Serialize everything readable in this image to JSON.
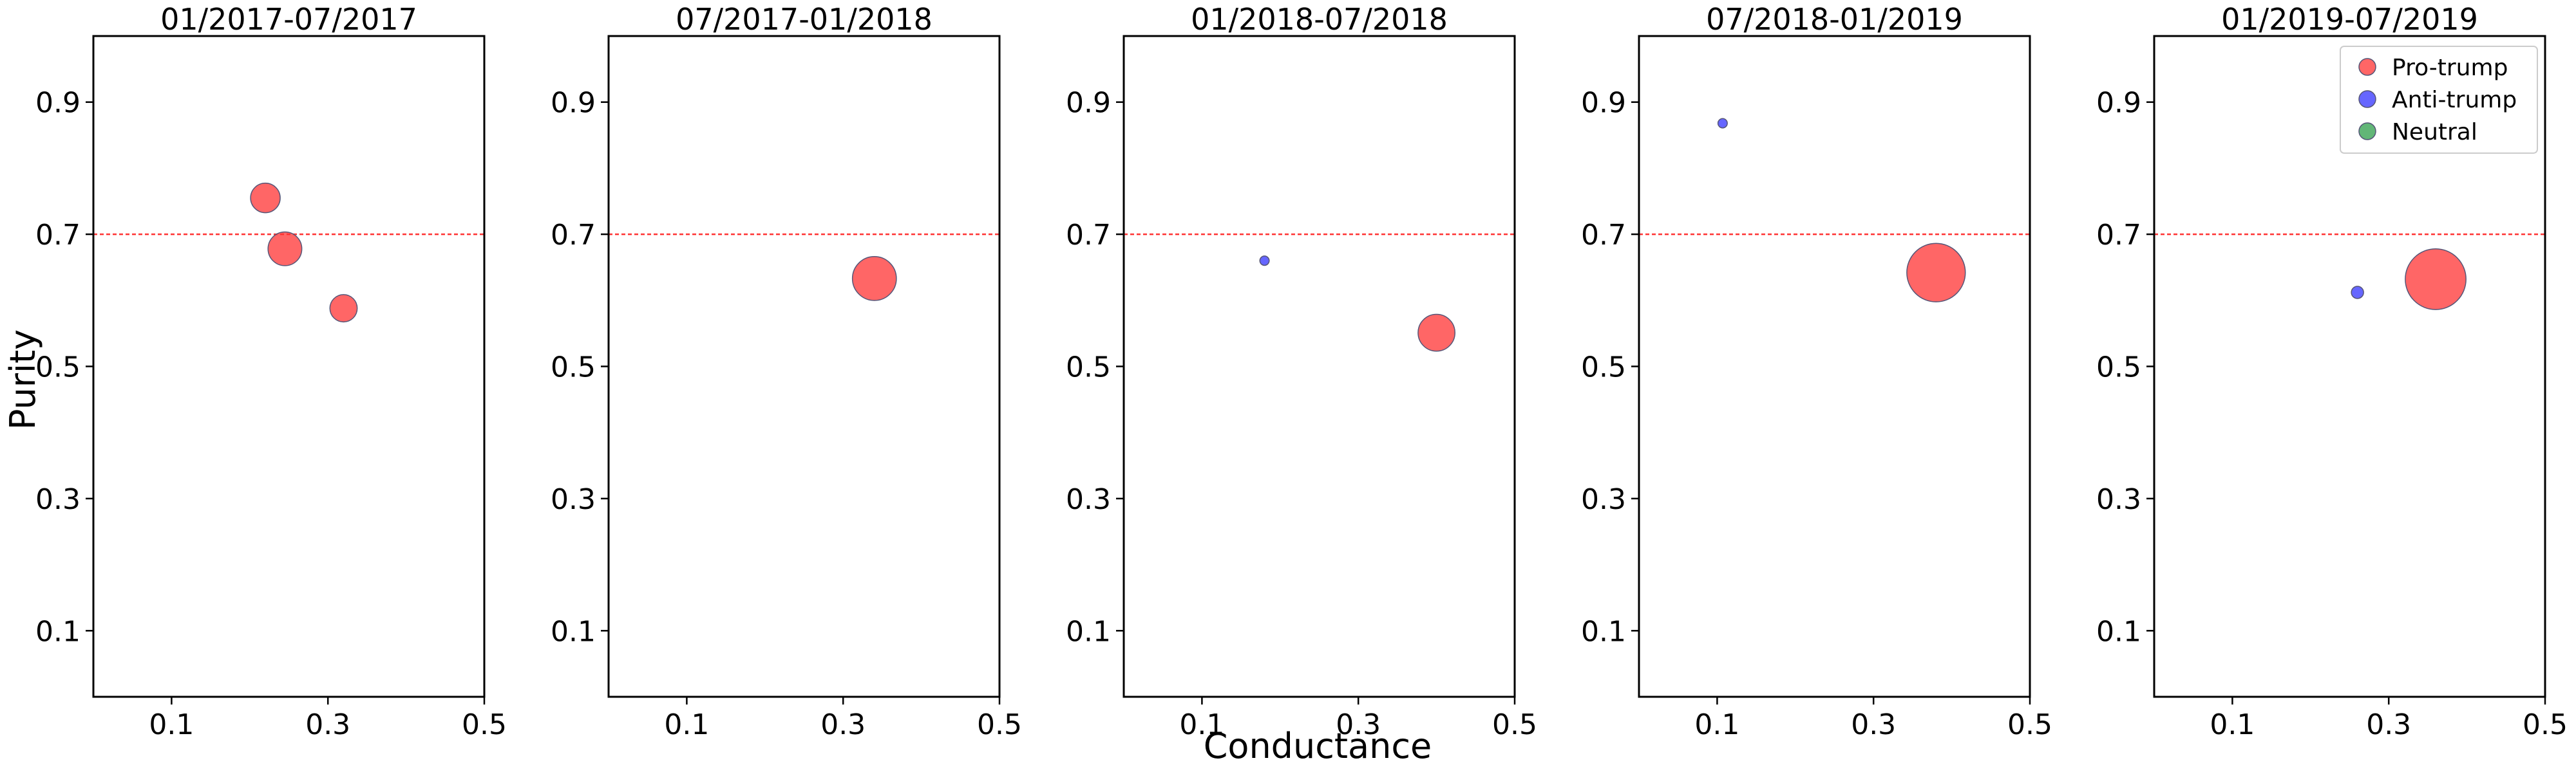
{
  "figure": {
    "xlabel": "Conductance",
    "ylabel": "Purity"
  },
  "colors": {
    "Pro-trump": "#ff3333",
    "Anti-trump": "#3333ff",
    "Neutral": "#2e9e4a",
    "reference_line": "#ff3333"
  },
  "legend": [
    {
      "label": "Pro-trump",
      "color": "#ff3333"
    },
    {
      "label": "Anti-trump",
      "color": "#3333ff"
    },
    {
      "label": "Neutral",
      "color": "#2e9e4a"
    }
  ],
  "chart_data": [
    {
      "type": "scatter",
      "title": "01/2017-07/2017",
      "xlim": [
        0.0,
        0.5
      ],
      "ylim": [
        0.0,
        1.0
      ],
      "xticks": [
        "0.1",
        "0.3",
        "0.5"
      ],
      "yticks": [
        "0.1",
        "0.3",
        "0.5",
        "0.7",
        "0.9"
      ],
      "reference_line_y": 0.7,
      "points": [
        {
          "group": "Pro-trump",
          "x": 0.22,
          "y": 0.755,
          "size": 1.0
        },
        {
          "group": "Pro-trump",
          "x": 0.245,
          "y": 0.678,
          "size": 1.3
        },
        {
          "group": "Pro-trump",
          "x": 0.32,
          "y": 0.588,
          "size": 0.85
        }
      ]
    },
    {
      "type": "scatter",
      "title": "07/2017-01/2018",
      "xlim": [
        0.0,
        0.5
      ],
      "ylim": [
        0.0,
        1.0
      ],
      "xticks": [
        "0.1",
        "0.3",
        "0.5"
      ],
      "yticks": [
        "0.1",
        "0.3",
        "0.5",
        "0.7",
        "0.9"
      ],
      "reference_line_y": 0.7,
      "points": [
        {
          "group": "Pro-trump",
          "x": 0.34,
          "y": 0.633,
          "size": 2.2
        }
      ]
    },
    {
      "type": "scatter",
      "title": "01/2018-07/2018",
      "xlim": [
        0.0,
        0.5
      ],
      "ylim": [
        0.0,
        1.0
      ],
      "xticks": [
        "0.1",
        "0.3",
        "0.5"
      ],
      "yticks": [
        "0.1",
        "0.3",
        "0.5",
        "0.7",
        "0.9"
      ],
      "reference_line_y": 0.7,
      "points": [
        {
          "group": "Anti-trump",
          "x": 0.18,
          "y": 0.66,
          "size": 0.1
        },
        {
          "group": "Pro-trump",
          "x": 0.4,
          "y": 0.551,
          "size": 1.55
        }
      ]
    },
    {
      "type": "scatter",
      "title": "07/2018-01/2019",
      "xlim": [
        0.0,
        0.5
      ],
      "ylim": [
        0.0,
        1.0
      ],
      "xticks": [
        "0.1",
        "0.3",
        "0.5"
      ],
      "yticks": [
        "0.1",
        "0.3",
        "0.5",
        "0.7",
        "0.9"
      ],
      "reference_line_y": 0.7,
      "points": [
        {
          "group": "Anti-trump",
          "x": 0.107,
          "y": 0.868,
          "size": 0.1
        },
        {
          "group": "Pro-trump",
          "x": 0.38,
          "y": 0.642,
          "size": 3.9
        }
      ]
    },
    {
      "type": "scatter",
      "title": "01/2019-07/2019",
      "xlim": [
        0.0,
        0.5
      ],
      "ylim": [
        0.0,
        1.0
      ],
      "xticks": [
        "0.1",
        "0.3",
        "0.5"
      ],
      "yticks": [
        "0.1",
        "0.3",
        "0.5",
        "0.7",
        "0.9"
      ],
      "reference_line_y": 0.7,
      "legend": "top-right",
      "points": [
        {
          "group": "Anti-trump",
          "x": 0.26,
          "y": 0.612,
          "size": 0.17
        },
        {
          "group": "Pro-trump",
          "x": 0.36,
          "y": 0.632,
          "size": 4.2
        }
      ]
    }
  ]
}
